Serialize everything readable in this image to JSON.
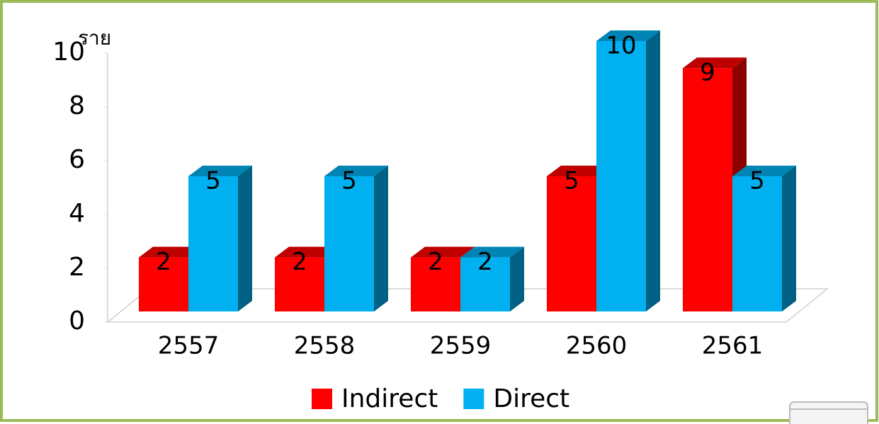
{
  "chart_data": {
    "type": "bar3d",
    "y_label": "ราย",
    "categories": [
      "2557",
      "2558",
      "2559",
      "2560",
      "2561"
    ],
    "series": [
      {
        "name": "Indirect",
        "color": "#ff0000",
        "values": [
          2,
          2,
          2,
          5,
          9
        ]
      },
      {
        "name": "Direct",
        "color": "#00b0f0",
        "values": [
          5,
          5,
          2,
          10,
          5
        ]
      }
    ],
    "ylim": [
      0,
      10
    ],
    "yticks": [
      0,
      2,
      4,
      6,
      8,
      10
    ],
    "legend": "bottom"
  }
}
